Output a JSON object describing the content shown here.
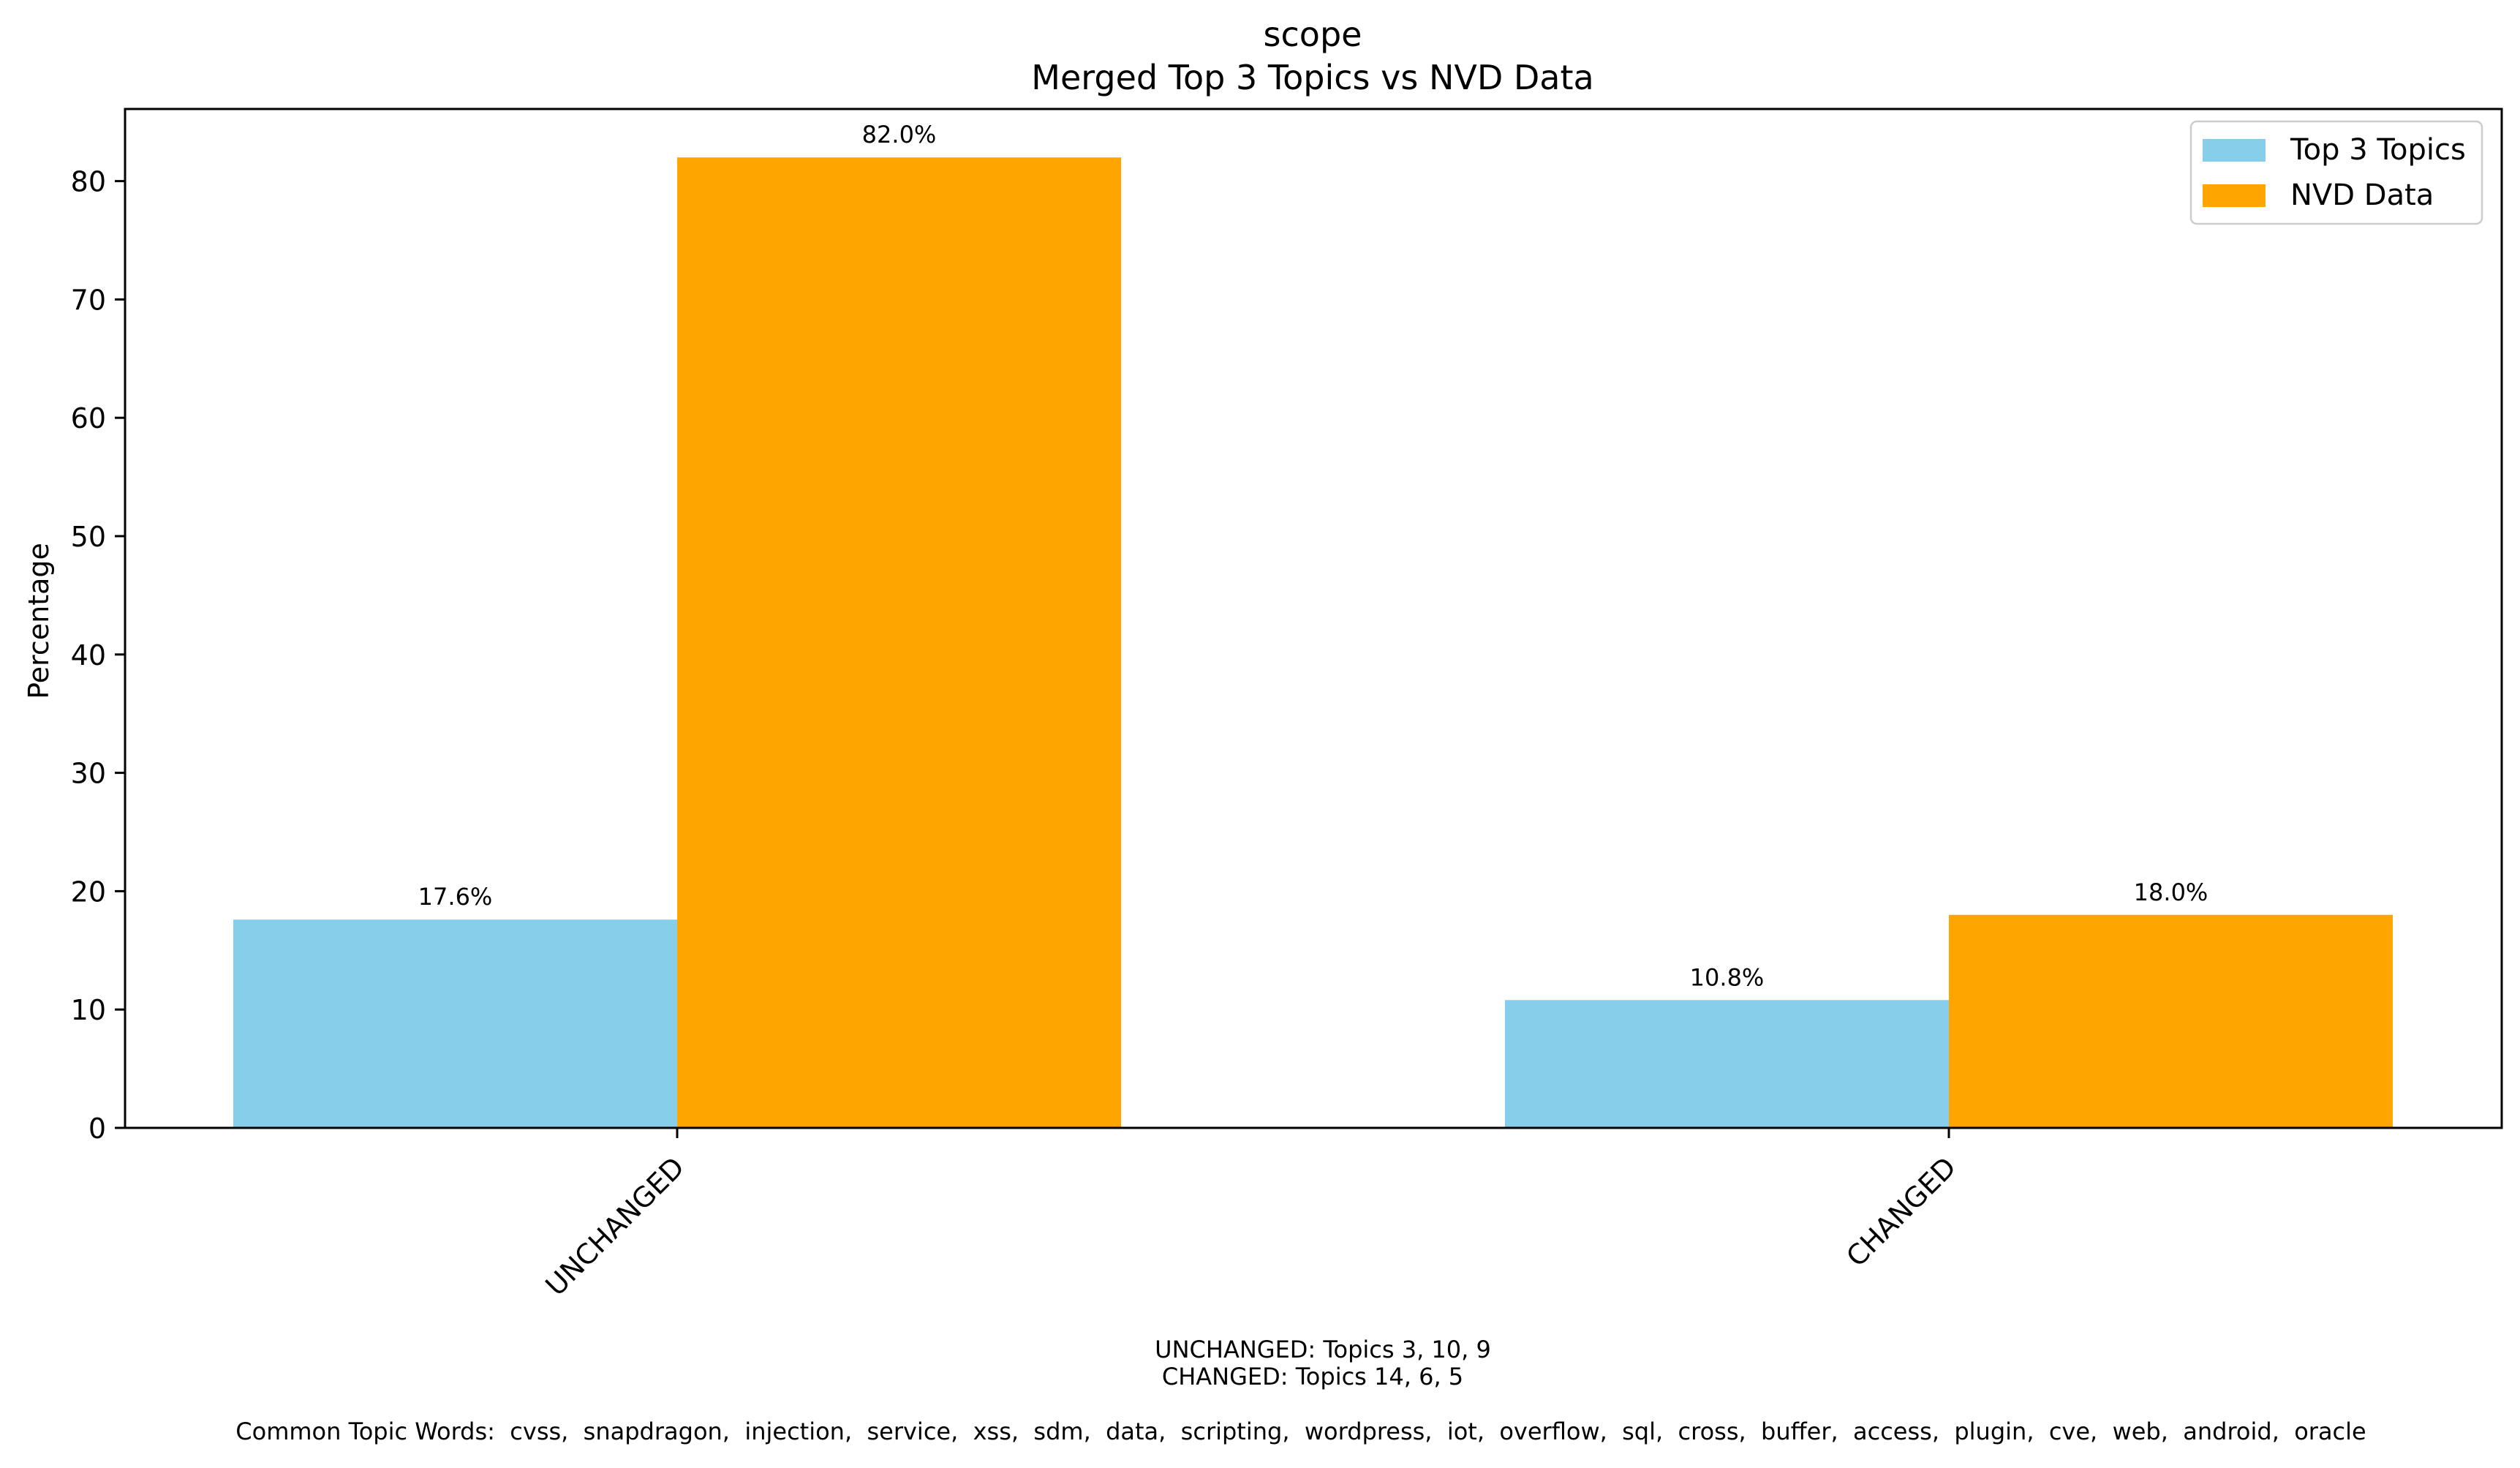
{
  "chart_data": {
    "type": "bar",
    "title_line1": "scope",
    "title_line2": "Merged Top 3 Topics vs NVD Data",
    "xlabel": "",
    "ylabel": "Percentage",
    "categories": [
      "UNCHANGED",
      "CHANGED"
    ],
    "series": [
      {
        "name": "Top 3 Topics",
        "color": "#87CEEB",
        "values": [
          17.6,
          10.8
        ],
        "labels": [
          "17.6%",
          "10.8%"
        ]
      },
      {
        "name": "NVD Data",
        "color": "#FFA500",
        "values": [
          82.0,
          18.0
        ],
        "labels": [
          "82.0%",
          "18.0%"
        ]
      }
    ],
    "ylim": [
      0,
      86.1
    ],
    "yticks": [
      0,
      10,
      20,
      30,
      40,
      50,
      60,
      70,
      80
    ],
    "legend_position": "top-right",
    "grid": false
  },
  "annotations": {
    "topics_unchanged": "UNCHANGED: Topics 3, 10, 9",
    "topics_changed": "CHANGED: Topics 14, 6, 5",
    "common_words": "Common Topic Words:  cvss,  snapdragon,  injection,  service,  xss,  sdm,  data,  scripting,  wordpress,  iot,  overflow,  sql,  cross,  buffer,  access,  plugin,  cve,  web,  android,  oracle"
  }
}
